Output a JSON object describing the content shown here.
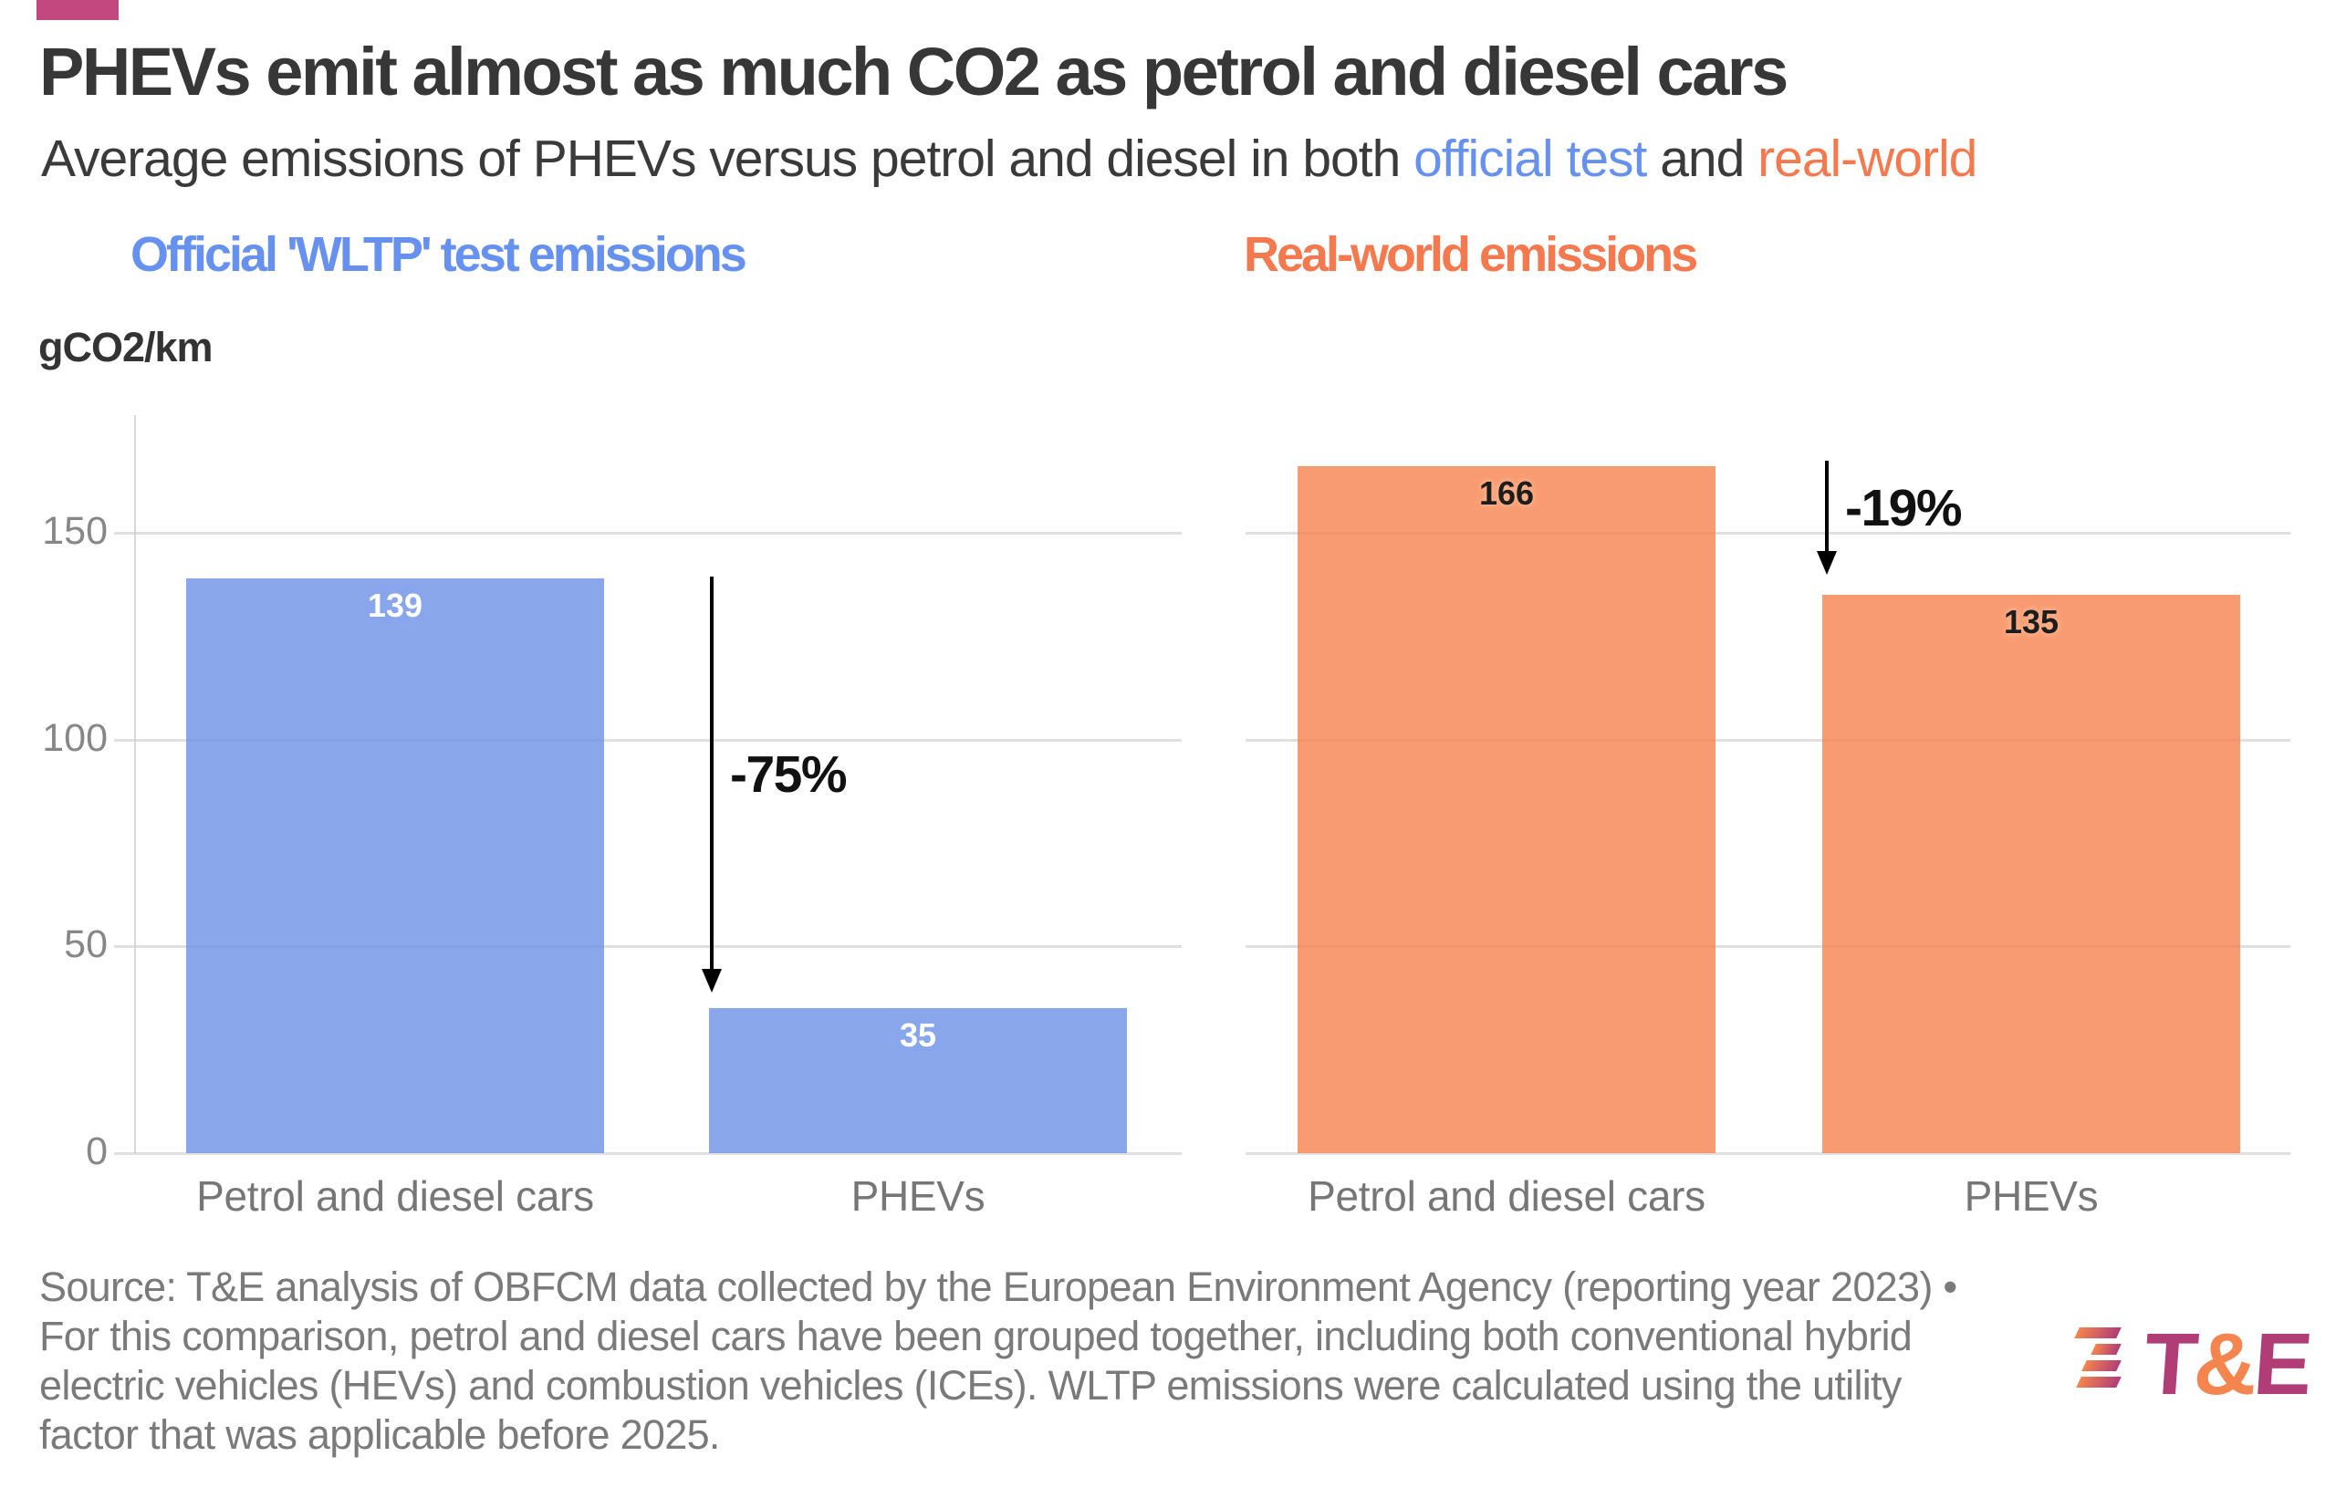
{
  "title": "PHEVs emit almost as much CO2 as petrol and diesel cars",
  "subtitle": {
    "prefix": "Average emissions of PHEVs versus petrol and diesel in both ",
    "official": "official test",
    "connector": " and ",
    "realworld": "real-world"
  },
  "colors": {
    "accent": "#c3487f",
    "blue_bar": "#8aa7ec",
    "orange_bar": "#f99b72",
    "blue_text": "#6691ee",
    "orange_text": "#f4794e",
    "logo_magenta": "#b13d76",
    "logo_orange": "#f4854e"
  },
  "chart_data": {
    "type": "bar",
    "categories": [
      "Petrol and diesel cars",
      "PHEVs"
    ],
    "series": [
      {
        "name": "Official 'WLTP' test emissions",
        "values": [
          139,
          35
        ],
        "color": "#8aa7ec",
        "annotation": "-75%"
      },
      {
        "name": "Real-world emissions",
        "values": [
          166,
          135
        ],
        "color": "#f99b72",
        "annotation": "-19%"
      }
    ],
    "ylabel": "gCO2/km",
    "yticks": [
      0,
      50,
      100,
      150
    ],
    "ylim": [
      0,
      178
    ],
    "grid": true,
    "legend": "none"
  },
  "source": {
    "lines": [
      "Source: T&E analysis of OBFCM data collected by the European Environment Agency (reporting year 2023) •",
      "For this comparison, petrol and diesel cars have been grouped together, including both conventional hybrid",
      "electric vehicles (HEVs) and combustion vehicles (ICEs). WLTP emissions were calculated using the utility",
      "factor that was applicable before 2025."
    ]
  },
  "logo": {
    "t": "T",
    "amp": "&",
    "e": "E"
  }
}
